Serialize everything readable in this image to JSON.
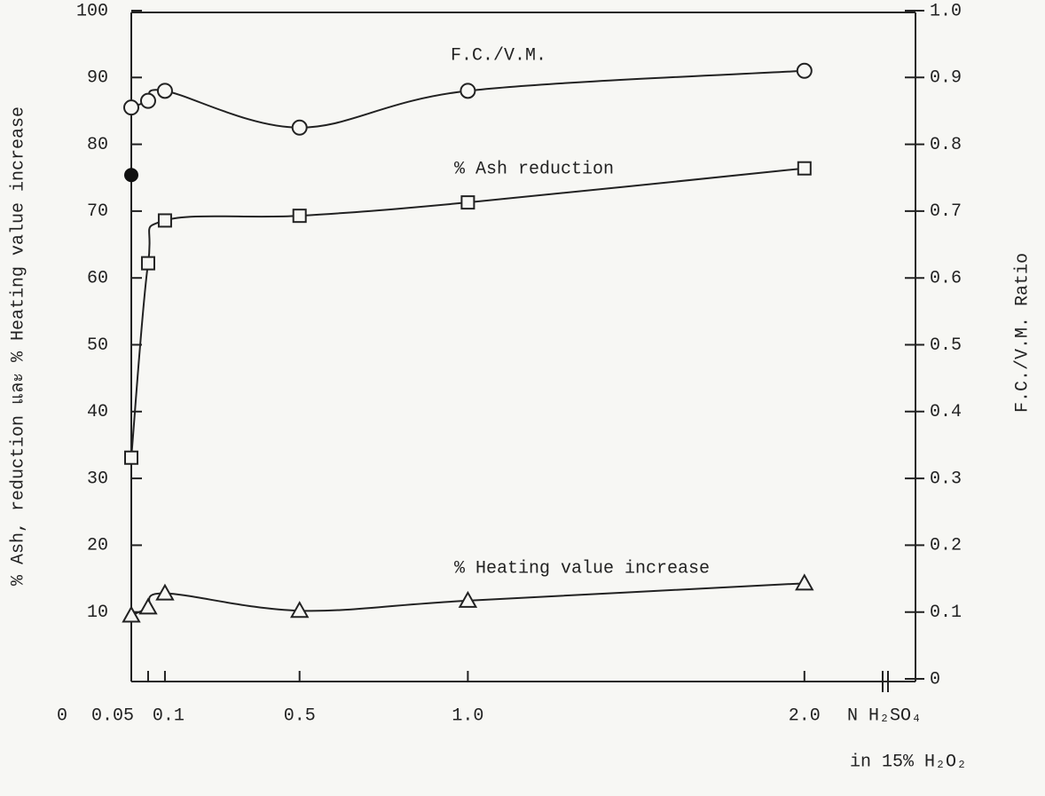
{
  "chart_data": {
    "type": "line",
    "x_label": [
      "N H₂SO₄",
      "in 15% H₂O₂"
    ],
    "y_label": "% Ash, reduction และ % Heating value increase",
    "y2_label": "F.C./V.M. Ratio",
    "x": [
      0,
      0.05,
      0.1,
      0.5,
      1.0,
      2.0
    ],
    "xlim": [
      0,
      2.33
    ],
    "xticks": [
      0,
      0.05,
      0.1,
      0.5,
      {
        "value": 1.0,
        "label": "1.0"
      },
      {
        "value": 2.0,
        "label": "2.0"
      }
    ],
    "ylim": [
      0,
      100
    ],
    "yticks": [
      10,
      20,
      30,
      40,
      50,
      60,
      70,
      80,
      90,
      100
    ],
    "y2lim": [
      0,
      1
    ],
    "y2ticks": [
      0,
      0.1,
      0.2,
      0.3,
      0.4,
      0.5,
      0.6,
      0.7,
      0.8,
      0.9,
      {
        "value": 1.0,
        "label": "1.0"
      }
    ],
    "color": "#222",
    "series": [
      {
        "name": "F.C./V.M.",
        "axis": "y2",
        "marker": "circle",
        "color": "#222",
        "values": [
          0.855,
          0.865,
          0.88,
          0.825,
          0.88,
          0.91
        ]
      },
      {
        "name": "% Ash reduction",
        "marker": "square",
        "color": "#222",
        "values": [
          33.1,
          62.2,
          68.6,
          69.3,
          71.3,
          76.4
        ]
      },
      {
        "name": "% Heating value increase",
        "marker": "triangle",
        "color": "#222",
        "values": [
          9.5,
          10.7,
          12.8,
          10.2,
          11.7,
          14.3
        ]
      },
      {
        "marker": "filled-circle",
        "color": "#111",
        "values": [
          75.4,
          null,
          null,
          null,
          null,
          null
        ]
      }
    ]
  }
}
